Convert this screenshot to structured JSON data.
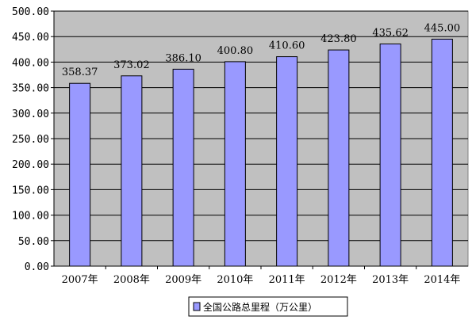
{
  "chart_data": {
    "type": "bar",
    "categories": [
      "2007年",
      "2008年",
      "2009年",
      "2010年",
      "2011年",
      "2012年",
      "2013年",
      "2014年"
    ],
    "series": [
      {
        "name": "全国公路总里程（万公里）",
        "values": [
          358.37,
          373.02,
          386.1,
          400.8,
          410.6,
          423.8,
          435.62,
          445.0
        ],
        "labels": [
          "358.37",
          "373.02",
          "386.10",
          "400.80",
          "410.60",
          "423.80",
          "435.62",
          "445.00"
        ],
        "color": "#9999ff"
      }
    ],
    "ylim": [
      0,
      500
    ],
    "yticks": [
      0,
      50,
      100,
      150,
      200,
      250,
      300,
      350,
      400,
      450,
      500
    ],
    "ytick_labels": [
      "0.00",
      "50.00",
      "100.00",
      "150.00",
      "200.00",
      "250.00",
      "300.00",
      "350.00",
      "400.00",
      "450.00",
      "500.00"
    ],
    "grid": true,
    "plot_background": "#c0c0c0",
    "legend_placement": "bottom"
  }
}
